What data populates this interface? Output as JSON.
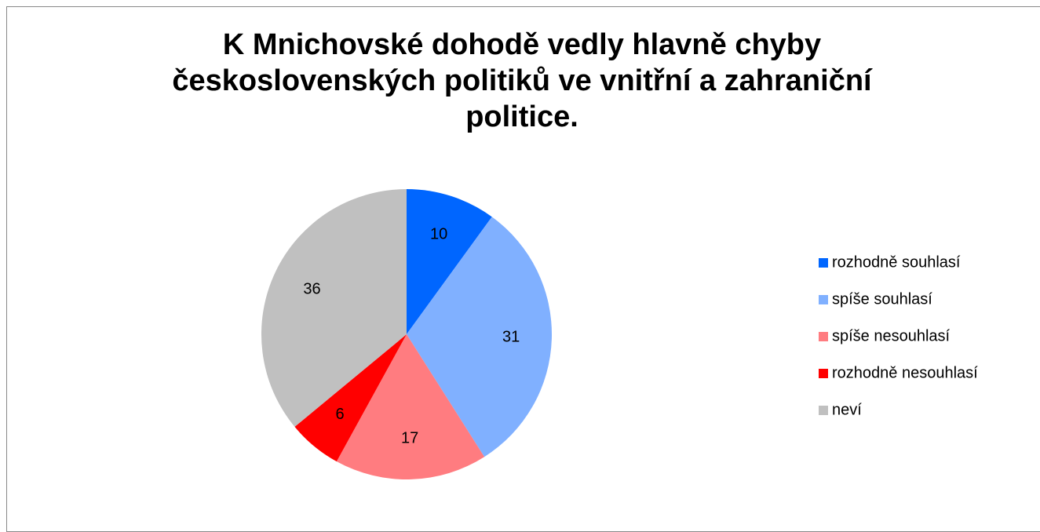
{
  "chart_data": {
    "type": "pie",
    "title": "K Mnichovské dohodě vedly hlavně chyby československých politiků ve vnitřní a zahraniční politice.",
    "categories": [
      "rozhodně souhlasí",
      "spíše souhlasí",
      "spíše nesouhlasí",
      "rozhodně nesouhlasí",
      "neví"
    ],
    "values": [
      10,
      31,
      17,
      6,
      36
    ],
    "colors": [
      "#0066ff",
      "#80b0ff",
      "#ff7c80",
      "#ff0000",
      "#c0c0c0"
    ],
    "legend": "right"
  }
}
